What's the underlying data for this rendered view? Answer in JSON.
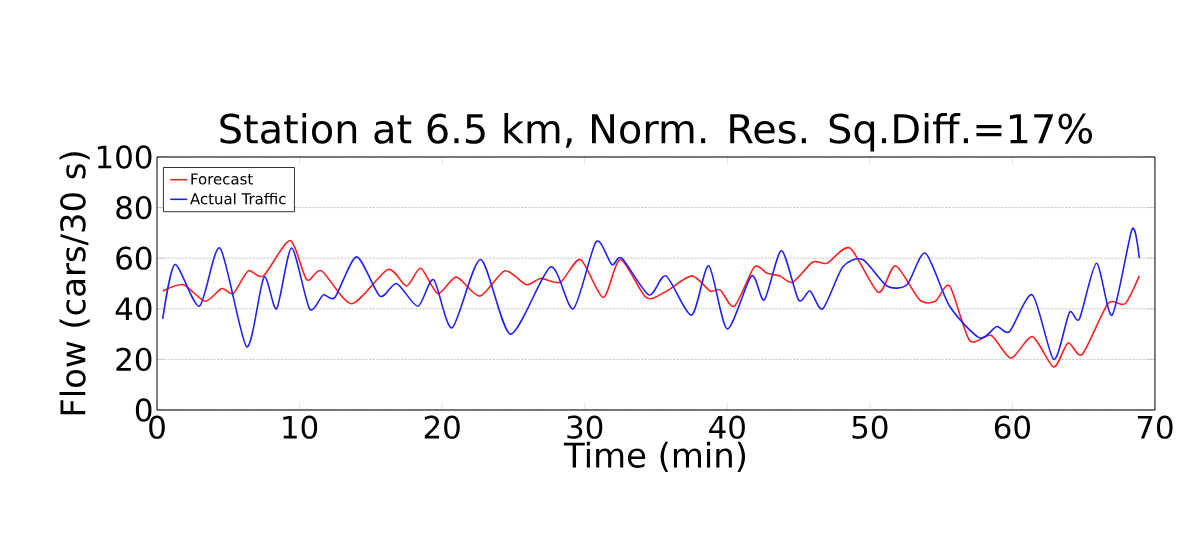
{
  "chart_data": {
    "type": "line",
    "title": "Station at 6.5 km, Norm. Res. Sq.Diff.=17%",
    "xlabel": "Time (min)",
    "ylabel": "Flow (cars/30 s)",
    "xlim": [
      0,
      70
    ],
    "ylim": [
      0,
      100
    ],
    "xticks": [
      0,
      10,
      20,
      30,
      40,
      50,
      60,
      70
    ],
    "yticks": [
      0,
      20,
      40,
      60,
      80,
      100
    ],
    "grid": "y",
    "legend": "top left",
    "series": [
      {
        "name": "Forecast",
        "color": "#ff2020",
        "x": [
          0.4,
          1.85,
          3.37,
          4.54,
          5.35,
          6.4,
          7.46,
          9.33,
          10.5,
          11.55,
          13.65,
          16.2,
          17.5,
          18.5,
          19.7,
          21.0,
          22.65,
          24.4,
          25.9,
          26.9,
          28.3,
          29.7,
          31.3,
          32.5,
          34.3,
          35.6,
          37.5,
          38.8,
          39.5,
          40.5,
          41.9,
          42.8,
          43.7,
          44.6,
          46.0,
          47.0,
          48.6,
          50.6,
          51.8,
          53.5,
          54.6,
          55.6,
          57.0,
          58.5,
          59.9,
          61.4,
          62.9,
          63.9,
          64.9,
          66.7,
          67.9,
          68.9
        ],
        "values": [
          47,
          49.5,
          43,
          48,
          46,
          55,
          53,
          67,
          51.5,
          55,
          42,
          55.5,
          49,
          56,
          46,
          52.5,
          45,
          55,
          49.5,
          52,
          50.5,
          59.5,
          44.5,
          59.5,
          44.5,
          46.5,
          53,
          47,
          47.5,
          41,
          56.5,
          54,
          53,
          50.5,
          58.5,
          58,
          64,
          46.5,
          57,
          43.5,
          43,
          49,
          27.5,
          29.5,
          20.5,
          29,
          17,
          26.5,
          22,
          42,
          42,
          53
        ]
      },
      {
        "name": "Actual Traffic",
        "color": "#2020ff",
        "x": [
          0.4,
          1.26,
          2.97,
          4.42,
          6.29,
          7.5,
          8.39,
          9.44,
          10.7,
          11.66,
          12.48,
          14.0,
          15.64,
          16.8,
          18.3,
          19.4,
          20.7,
          22.7,
          24.8,
          27.6,
          29.2,
          30.8,
          31.9,
          32.6,
          34.5,
          35.7,
          37.5,
          38.7,
          40.0,
          41.7,
          42.6,
          43.8,
          45.0,
          45.8,
          46.7,
          48.1,
          49.5,
          51.2,
          52.6,
          53.9,
          55.6,
          57.7,
          58.9,
          59.8,
          61.4,
          62.9,
          64.0,
          64.7,
          65.9,
          67.0,
          68.4,
          68.9
        ],
        "values": [
          36,
          57.5,
          41,
          64,
          25,
          52.5,
          40,
          64,
          40,
          45.5,
          44.5,
          60.5,
          45,
          50,
          41,
          51.5,
          32.5,
          59.5,
          30,
          56.5,
          40,
          66.5,
          57.5,
          60,
          45.5,
          53,
          37.5,
          57,
          32,
          53,
          43.5,
          63,
          43.5,
          47,
          40,
          56.5,
          59.5,
          49,
          49.5,
          62,
          41,
          28.5,
          33,
          31,
          45.5,
          20,
          38.5,
          36,
          58,
          37.5,
          71.5,
          60
        ]
      }
    ]
  }
}
